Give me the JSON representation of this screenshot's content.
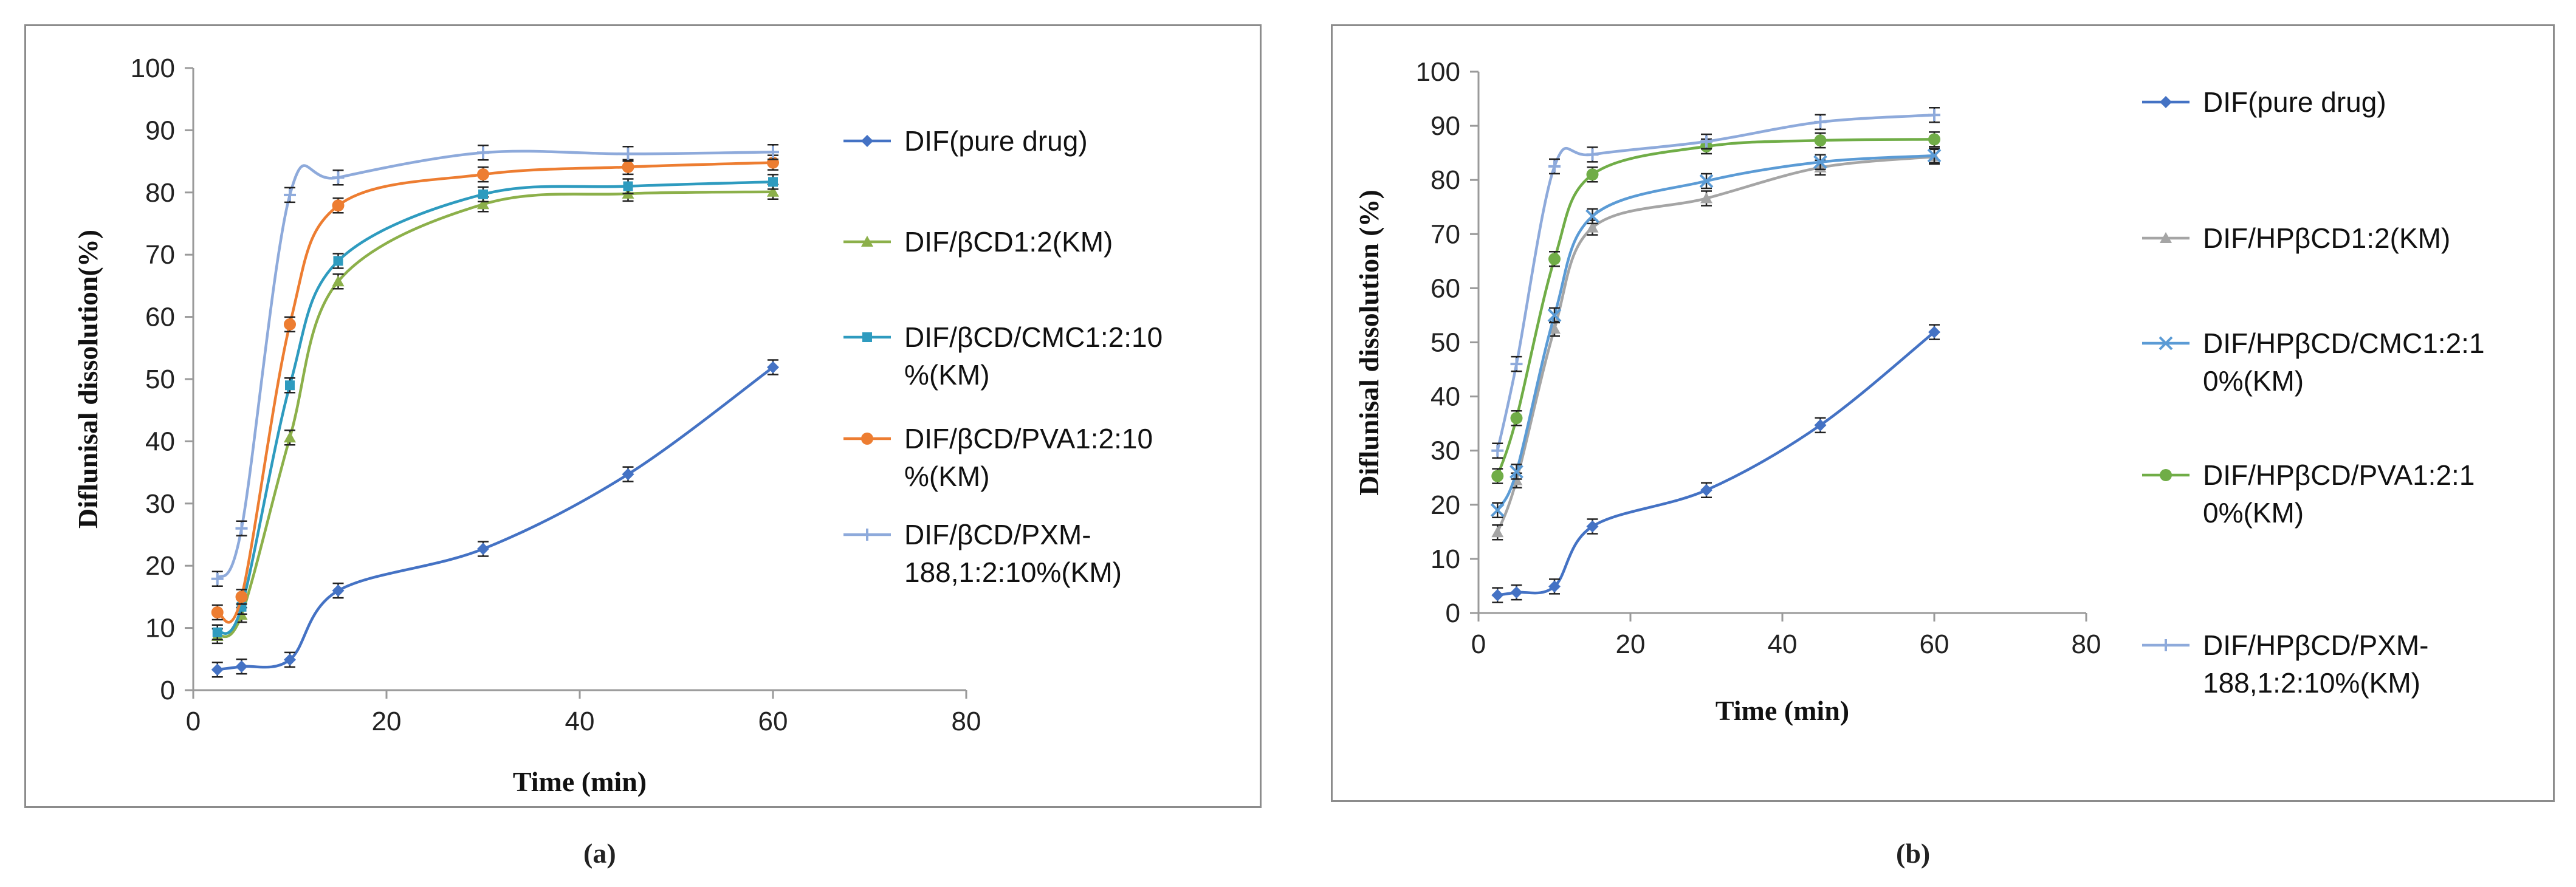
{
  "captions": {
    "a": "(a)",
    "b": "(b)"
  },
  "chart_data": [
    {
      "type": "line",
      "panel": "a",
      "xlabel": "Time (min)",
      "ylabel": "Diflunisal dissolution(%)",
      "xlim": [
        0,
        80
      ],
      "ylim": [
        0,
        100
      ],
      "xticks": [
        "0",
        "20",
        "40",
        "60",
        "80"
      ],
      "yticks": [
        "0",
        "10",
        "20",
        "30",
        "40",
        "50",
        "60",
        "70",
        "80",
        "90",
        "100"
      ],
      "x": [
        2.5,
        5,
        10,
        15,
        30,
        45,
        60
      ],
      "series": [
        {
          "name": "DIF(pure drug)",
          "legend_lines": [
            "DIF(pure drug)"
          ],
          "color": "#4472c4",
          "marker": "diamond",
          "values": [
            3.3,
            3.8,
            4.9,
            16.0,
            22.7,
            34.7,
            51.9
          ]
        },
        {
          "name": "DIF/βCD1:2(KM)",
          "legend_lines": [
            "DIF/βCD1:2(KM)"
          ],
          "color": "#8cb04a",
          "marker": "triangle",
          "values": [
            8.7,
            12.1,
            40.6,
            65.7,
            78.1,
            79.8,
            80.1
          ]
        },
        {
          "name": "DIF/βCD/CMC1:2:10%(KM)",
          "legend_lines": [
            "DIF/βCD/CMC1:2:10",
            "%(KM)"
          ],
          "color": "#2e9bbf",
          "marker": "square",
          "values": [
            9.3,
            13.4,
            49.0,
            69.0,
            79.7,
            81.0,
            81.7
          ]
        },
        {
          "name": "DIF/βCD/PVA1:2:10%(KM)",
          "legend_lines": [
            "DIF/βCD/PVA1:2:10",
            "%(KM)"
          ],
          "color": "#ed7d31",
          "marker": "circle",
          "values": [
            12.5,
            15.0,
            58.8,
            77.9,
            82.9,
            84.1,
            84.8
          ]
        },
        {
          "name": "DIF/βCD/PXM-188,1:2:10%(KM)",
          "legend_lines": [
            "DIF/βCD/PXM-",
            "188,1:2:10%(KM)"
          ],
          "color": "#8eaadb",
          "marker": "plus",
          "values": [
            17.9,
            26.0,
            79.6,
            82.4,
            86.4,
            86.2,
            86.5
          ]
        }
      ]
    },
    {
      "type": "line",
      "panel": "b",
      "xlabel": "Time (min)",
      "ylabel": "Diflunisal dissolution (%)",
      "xlim": [
        0,
        80
      ],
      "ylim": [
        0,
        100
      ],
      "xticks": [
        "0",
        "20",
        "40",
        "60",
        "80"
      ],
      "yticks": [
        "0",
        "10",
        "20",
        "30",
        "40",
        "50",
        "60",
        "70",
        "80",
        "90",
        "100"
      ],
      "x": [
        2.5,
        5,
        10,
        15,
        30,
        45,
        60
      ],
      "series": [
        {
          "name": "DIF(pure drug)",
          "legend_lines": [
            "DIF(pure drug)"
          ],
          "color": "#4472c4",
          "marker": "diamond",
          "values": [
            3.3,
            3.8,
            4.9,
            16.0,
            22.7,
            34.7,
            51.9
          ]
        },
        {
          "name": "DIF/HPβCD1:2(KM)",
          "legend_lines": [
            "DIF/HPβCD1:2(KM)"
          ],
          "color": "#a5a5a5",
          "marker": "triangle",
          "values": [
            14.9,
            24.5,
            52.5,
            71.2,
            76.6,
            82.3,
            84.3
          ]
        },
        {
          "name": "DIF/HPβCD/CMC1:2:10%(KM)",
          "legend_lines": [
            "DIF/HPβCD/CMC1:2:1",
            "0%(KM)"
          ],
          "color": "#5b9bd5",
          "marker": "x",
          "values": [
            19.0,
            26.1,
            55.0,
            73.3,
            79.8,
            83.3,
            84.5
          ]
        },
        {
          "name": "DIF/HPβCD/PVA1:2:10%(KM)",
          "legend_lines": [
            "DIF/HPβCD/PVA1:2:1",
            "0%(KM)"
          ],
          "color": "#70ad47",
          "marker": "circle",
          "values": [
            25.3,
            36.0,
            65.4,
            81.0,
            86.2,
            87.3,
            87.5
          ]
        },
        {
          "name": "DIF/HPβCD/PXM-188,1:2:10%(KM)",
          "legend_lines": [
            "DIF/HPβCD/PXM-",
            "188,1:2:10%(KM)"
          ],
          "color": "#8eaadb",
          "marker": "plus",
          "values": [
            30.0,
            46.0,
            82.5,
            84.7,
            87.1,
            90.7,
            92.0
          ]
        }
      ]
    }
  ]
}
